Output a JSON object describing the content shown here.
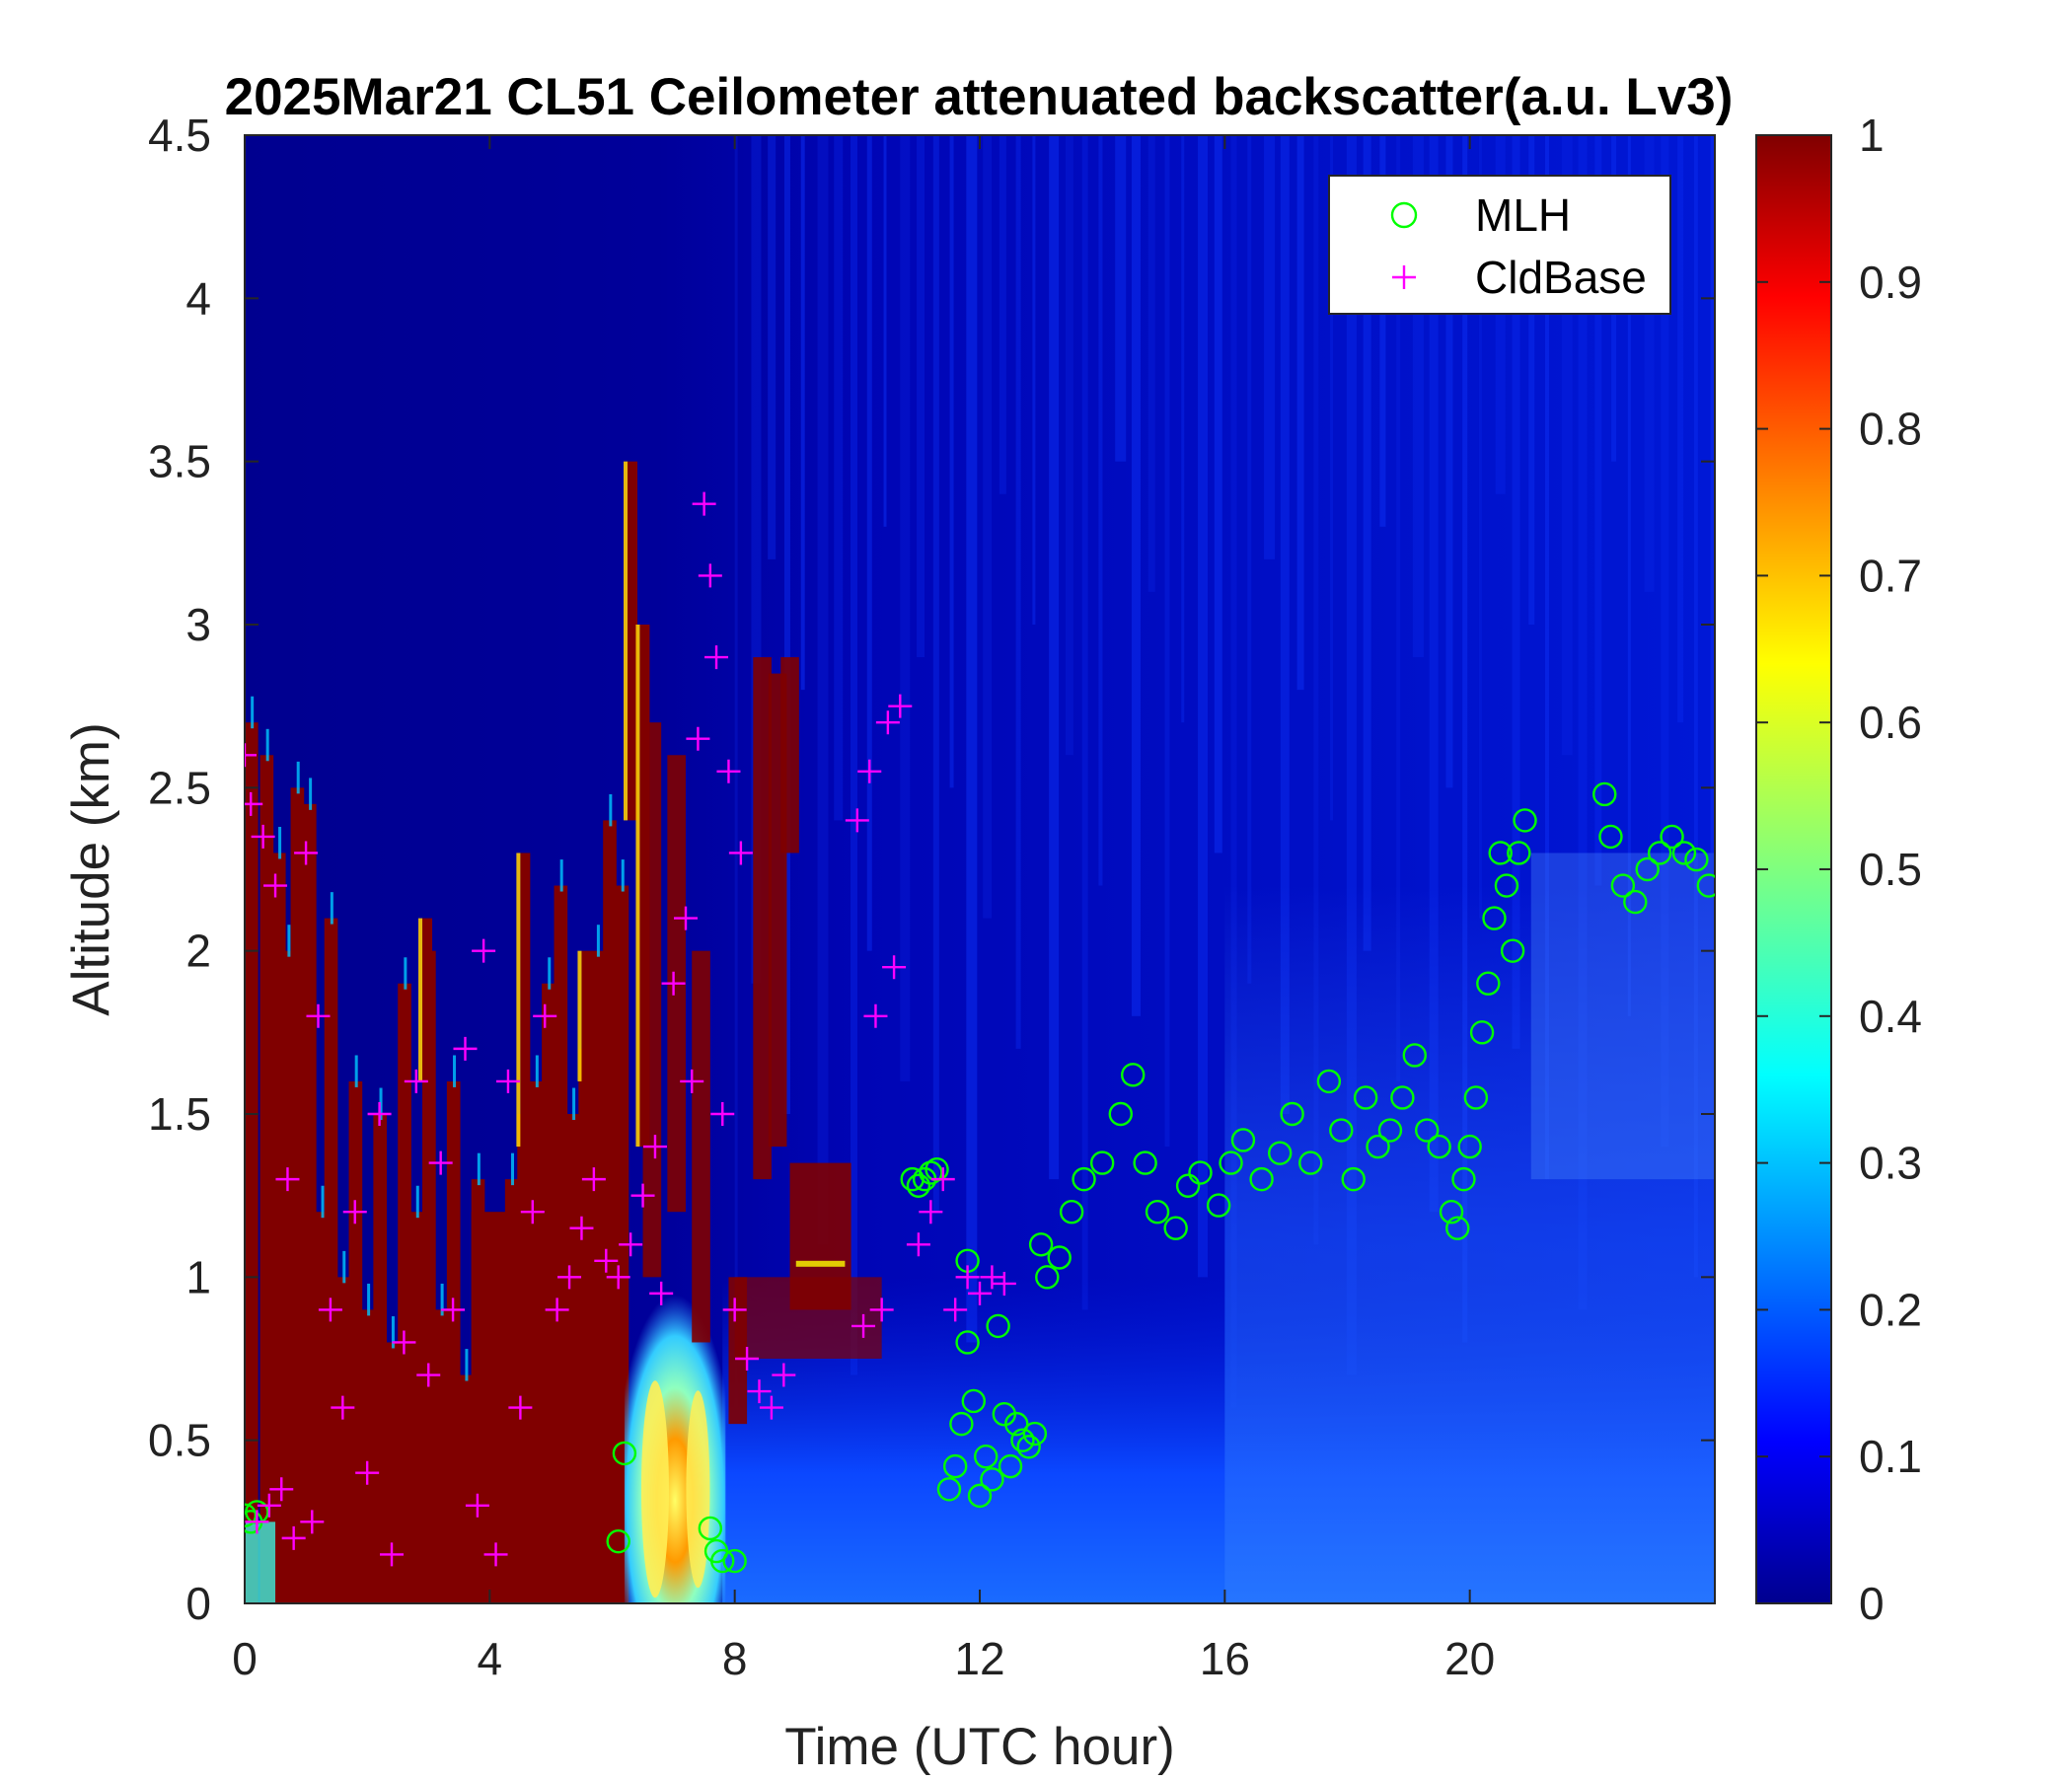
{
  "chart_data": {
    "type": "heatmap",
    "title": "2025Mar21 CL51 Ceilometer attenuated backscatter(a.u. Lv3)",
    "xlabel": "Time (UTC hour)",
    "ylabel": "Altitude (km)",
    "xlim": [
      0,
      24
    ],
    "ylim": [
      0,
      4.5
    ],
    "xticks": [
      0,
      4,
      8,
      12,
      16,
      20
    ],
    "yticks": [
      0,
      0.5,
      1,
      1.5,
      2,
      2.5,
      3,
      3.5,
      4,
      4.5
    ],
    "xtick_labels": [
      "0",
      "4",
      "8",
      "12",
      "16",
      "20"
    ],
    "ytick_labels": [
      "0",
      "0.5",
      "1",
      "1.5",
      "2",
      "2.5",
      "3",
      "3.5",
      "4",
      "4.5"
    ],
    "colorbar": {
      "colormap": "jet",
      "range": [
        0,
        1
      ],
      "ticks": [
        0,
        0.1,
        0.2,
        0.3,
        0.4,
        0.5,
        0.6,
        0.7,
        0.8,
        0.9,
        1
      ],
      "tick_labels": [
        "0",
        "0.1",
        "0.2",
        "0.3",
        "0.4",
        "0.5",
        "0.6",
        "0.7",
        "0.8",
        "0.9",
        "1"
      ]
    },
    "legend": {
      "placement": "top-right",
      "entries": [
        {
          "label": "MLH",
          "marker": "circle",
          "color": "#00ff00"
        },
        {
          "label": "CldBase",
          "marker": "plus",
          "color": "#ff00ff"
        }
      ]
    },
    "series": [
      {
        "name": "MLH",
        "marker": "circle",
        "color": "#00ff00",
        "points": [
          [
            0.0,
            0.27
          ],
          [
            0.1,
            0.25
          ],
          [
            0.2,
            0.28
          ],
          [
            6.1,
            0.19
          ],
          [
            6.2,
            0.46
          ],
          [
            7.6,
            0.23
          ],
          [
            7.7,
            0.16
          ],
          [
            7.8,
            0.13
          ],
          [
            8.0,
            0.13
          ],
          [
            10.9,
            1.3
          ],
          [
            11.0,
            1.28
          ],
          [
            11.1,
            1.3
          ],
          [
            11.2,
            1.32
          ],
          [
            11.3,
            1.33
          ],
          [
            11.5,
            0.35
          ],
          [
            11.6,
            0.42
          ],
          [
            11.7,
            0.55
          ],
          [
            11.8,
            0.8
          ],
          [
            11.8,
            1.05
          ],
          [
            11.9,
            0.62
          ],
          [
            12.0,
            0.33
          ],
          [
            12.1,
            0.45
          ],
          [
            12.2,
            0.38
          ],
          [
            12.3,
            0.85
          ],
          [
            12.4,
            0.58
          ],
          [
            12.5,
            0.42
          ],
          [
            12.6,
            0.55
          ],
          [
            12.7,
            0.5
          ],
          [
            12.8,
            0.48
          ],
          [
            12.9,
            0.52
          ],
          [
            13.0,
            1.1
          ],
          [
            13.1,
            1.0
          ],
          [
            13.3,
            1.06
          ],
          [
            13.5,
            1.2
          ],
          [
            13.7,
            1.3
          ],
          [
            14.0,
            1.35
          ],
          [
            14.3,
            1.5
          ],
          [
            14.5,
            1.62
          ],
          [
            14.7,
            1.35
          ],
          [
            14.9,
            1.2
          ],
          [
            15.2,
            1.15
          ],
          [
            15.4,
            1.28
          ],
          [
            15.6,
            1.32
          ],
          [
            15.9,
            1.22
          ],
          [
            16.1,
            1.35
          ],
          [
            16.3,
            1.42
          ],
          [
            16.6,
            1.3
          ],
          [
            16.9,
            1.38
          ],
          [
            17.1,
            1.5
          ],
          [
            17.4,
            1.35
          ],
          [
            17.7,
            1.6
          ],
          [
            17.9,
            1.45
          ],
          [
            18.1,
            1.3
          ],
          [
            18.3,
            1.55
          ],
          [
            18.5,
            1.4
          ],
          [
            18.7,
            1.45
          ],
          [
            18.9,
            1.55
          ],
          [
            19.1,
            1.68
          ],
          [
            19.3,
            1.45
          ],
          [
            19.5,
            1.4
          ],
          [
            19.7,
            1.2
          ],
          [
            19.8,
            1.15
          ],
          [
            19.9,
            1.3
          ],
          [
            20.0,
            1.4
          ],
          [
            20.1,
            1.55
          ],
          [
            20.2,
            1.75
          ],
          [
            20.3,
            1.9
          ],
          [
            20.4,
            2.1
          ],
          [
            20.5,
            2.3
          ],
          [
            20.6,
            2.2
          ],
          [
            20.7,
            2.0
          ],
          [
            20.8,
            2.3
          ],
          [
            20.9,
            2.4
          ],
          [
            22.2,
            2.48
          ],
          [
            22.3,
            2.35
          ],
          [
            22.5,
            2.2
          ],
          [
            22.7,
            2.15
          ],
          [
            22.9,
            2.25
          ],
          [
            23.1,
            2.3
          ],
          [
            23.3,
            2.35
          ],
          [
            23.5,
            2.3
          ],
          [
            23.7,
            2.28
          ],
          [
            23.9,
            2.2
          ]
        ]
      },
      {
        "name": "CldBase",
        "marker": "plus",
        "color": "#ff00ff",
        "points": [
          [
            0.0,
            2.6
          ],
          [
            0.1,
            2.45
          ],
          [
            0.2,
            0.25
          ],
          [
            0.3,
            2.35
          ],
          [
            0.4,
            0.3
          ],
          [
            0.5,
            2.2
          ],
          [
            0.6,
            0.35
          ],
          [
            0.7,
            1.3
          ],
          [
            0.8,
            0.2
          ],
          [
            1.0,
            2.3
          ],
          [
            1.1,
            0.25
          ],
          [
            1.2,
            1.8
          ],
          [
            1.4,
            0.9
          ],
          [
            1.6,
            0.6
          ],
          [
            1.8,
            1.2
          ],
          [
            2.0,
            0.4
          ],
          [
            2.2,
            1.5
          ],
          [
            2.4,
            0.15
          ],
          [
            2.6,
            0.8
          ],
          [
            2.8,
            1.6
          ],
          [
            3.0,
            0.7
          ],
          [
            3.2,
            1.35
          ],
          [
            3.4,
            0.9
          ],
          [
            3.6,
            1.7
          ],
          [
            3.8,
            0.3
          ],
          [
            3.9,
            2.0
          ],
          [
            4.1,
            0.15
          ],
          [
            4.3,
            1.6
          ],
          [
            4.5,
            0.6
          ],
          [
            4.7,
            1.2
          ],
          [
            4.9,
            1.8
          ],
          [
            5.1,
            0.9
          ],
          [
            5.3,
            1.0
          ],
          [
            5.5,
            1.15
          ],
          [
            5.7,
            1.3
          ],
          [
            5.9,
            1.05
          ],
          [
            6.1,
            1.0
          ],
          [
            6.3,
            1.1
          ],
          [
            6.5,
            1.25
          ],
          [
            6.7,
            1.4
          ],
          [
            6.8,
            0.95
          ],
          [
            7.0,
            1.9
          ],
          [
            7.2,
            2.1
          ],
          [
            7.3,
            1.6
          ],
          [
            7.4,
            2.65
          ],
          [
            7.5,
            3.37
          ],
          [
            7.6,
            3.15
          ],
          [
            7.7,
            2.9
          ],
          [
            7.8,
            1.5
          ],
          [
            7.9,
            2.55
          ],
          [
            8.0,
            0.9
          ],
          [
            8.1,
            2.3
          ],
          [
            8.2,
            0.75
          ],
          [
            8.4,
            0.65
          ],
          [
            8.6,
            0.6
          ],
          [
            8.8,
            0.7
          ],
          [
            10.0,
            2.4
          ],
          [
            10.1,
            0.85
          ],
          [
            10.2,
            2.55
          ],
          [
            10.3,
            1.8
          ],
          [
            10.4,
            0.9
          ],
          [
            10.5,
            2.7
          ],
          [
            10.6,
            1.95
          ],
          [
            10.7,
            2.75
          ],
          [
            11.0,
            1.1
          ],
          [
            11.2,
            1.2
          ],
          [
            11.4,
            1.3
          ],
          [
            11.6,
            0.9
          ],
          [
            11.8,
            1.0
          ],
          [
            12.0,
            0.95
          ],
          [
            12.2,
            1.0
          ],
          [
            12.4,
            0.98
          ]
        ]
      }
    ]
  }
}
